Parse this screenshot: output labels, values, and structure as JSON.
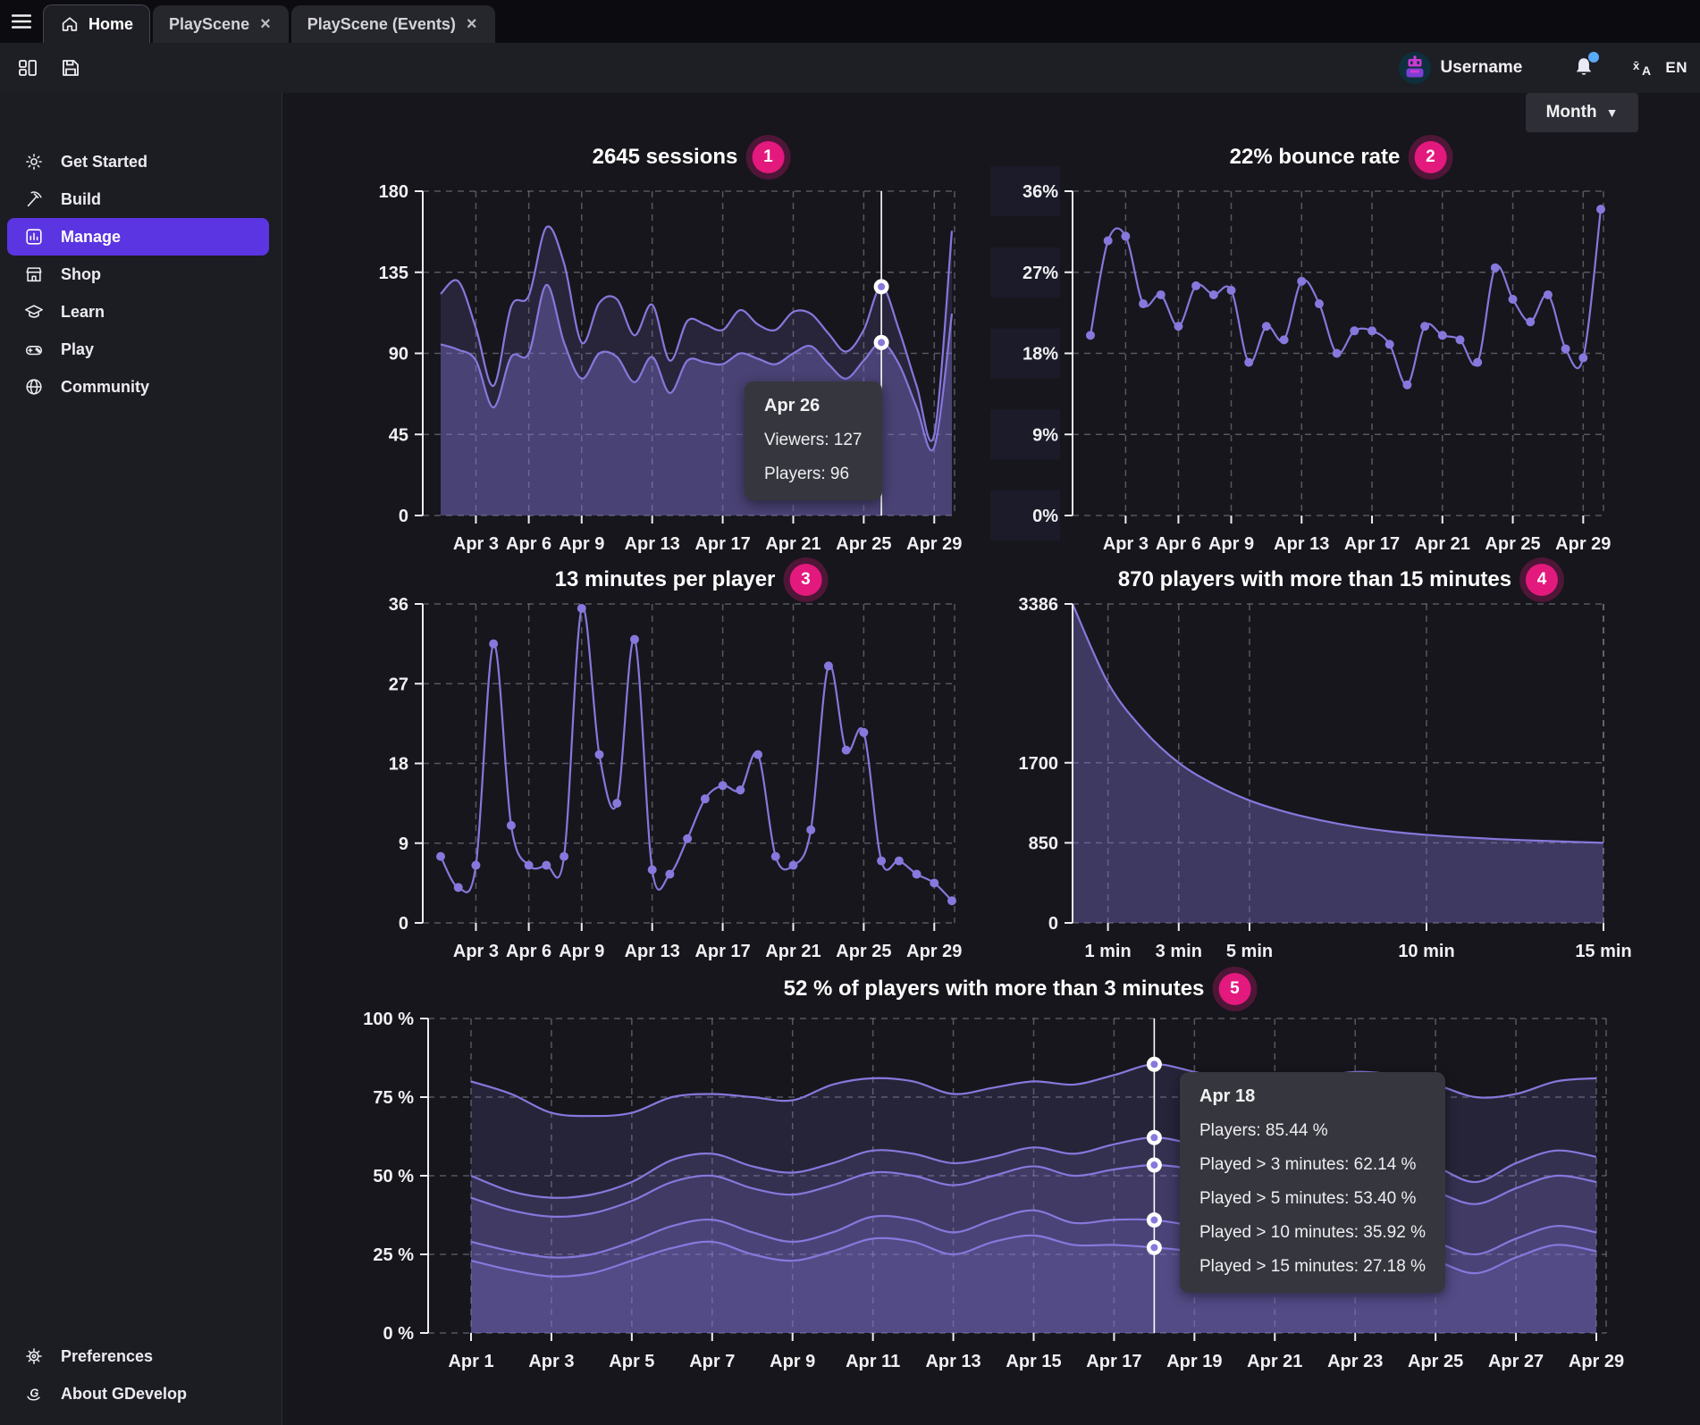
{
  "window": {
    "tabs": [
      {
        "label": "Home",
        "active": true
      },
      {
        "label": "PlayScene",
        "closable": true
      },
      {
        "label": "PlayScene (Events)",
        "closable": true
      }
    ]
  },
  "account": {
    "username": "Username",
    "language": "EN"
  },
  "period_selector": {
    "label": "Month"
  },
  "sidebar": {
    "items": [
      {
        "label": "Get Started"
      },
      {
        "label": "Build"
      },
      {
        "label": "Manage",
        "active": true
      },
      {
        "label": "Shop"
      },
      {
        "label": "Learn"
      },
      {
        "label": "Play"
      },
      {
        "label": "Community"
      }
    ],
    "footer": [
      {
        "label": "Preferences"
      },
      {
        "label": "About GDevelop"
      }
    ]
  },
  "colors": {
    "accent": "#5b35e1",
    "chart_line": "#8678dc",
    "badge": "#e3197e",
    "grid": "#9898a3",
    "tooltip_bg": "#36363e",
    "notification_dot": "#58aaf6"
  },
  "chart_data": [
    {
      "id": "sessions",
      "type": "area",
      "title": "2645 sessions",
      "badge": "1",
      "grid": true,
      "ylim": [
        0,
        180
      ],
      "yticks": [
        {
          "v": 0,
          "label": "0"
        },
        {
          "v": 45,
          "label": "45"
        },
        {
          "v": 90,
          "label": "90"
        },
        {
          "v": 135,
          "label": "135"
        },
        {
          "v": 180,
          "label": "180"
        }
      ],
      "xticks": [
        {
          "i": 2,
          "label": "Apr 3"
        },
        {
          "i": 5,
          "label": "Apr 6"
        },
        {
          "i": 8,
          "label": "Apr 9"
        },
        {
          "i": 12,
          "label": "Apr 13"
        },
        {
          "i": 16,
          "label": "Apr 17"
        },
        {
          "i": 20,
          "label": "Apr 21"
        },
        {
          "i": 24,
          "label": "Apr 25"
        },
        {
          "i": 28,
          "label": "Apr 29"
        }
      ],
      "series": [
        {
          "name": "Viewers",
          "values": [
            123,
            130,
            104,
            72,
            116,
            122,
            160,
            140,
            96,
            118,
            120,
            100,
            117,
            86,
            108,
            106,
            103,
            114,
            106,
            103,
            113,
            112,
            101,
            91,
            103,
            127,
            103,
            72,
            45,
            158
          ]
        },
        {
          "name": "Players",
          "values": [
            95,
            92,
            86,
            60,
            88,
            90,
            128,
            96,
            76,
            90,
            88,
            74,
            88,
            68,
            86,
            85,
            84,
            90,
            87,
            84,
            90,
            94,
            84,
            76,
            86,
            96,
            84,
            60,
            38,
            112
          ]
        }
      ],
      "highlight": {
        "index": 25,
        "label": "Apr 26",
        "tooltip": {
          "title": "Apr 26",
          "lines": [
            "Viewers: 127",
            "Players: 96"
          ]
        }
      }
    },
    {
      "id": "bounce",
      "type": "line",
      "title": "22% bounce rate",
      "badge": "2",
      "grid": true,
      "dots": true,
      "ylabel_bg": true,
      "ylim": [
        0,
        36
      ],
      "yticks": [
        {
          "v": 0,
          "label": "0%"
        },
        {
          "v": 9,
          "label": "9%"
        },
        {
          "v": 18,
          "label": "18%"
        },
        {
          "v": 27,
          "label": "27%"
        },
        {
          "v": 36,
          "label": "36%"
        }
      ],
      "xticks": [
        {
          "i": 2,
          "label": "Apr 3"
        },
        {
          "i": 5,
          "label": "Apr 6"
        },
        {
          "i": 8,
          "label": "Apr 9"
        },
        {
          "i": 12,
          "label": "Apr 13"
        },
        {
          "i": 16,
          "label": "Apr 17"
        },
        {
          "i": 20,
          "label": "Apr 21"
        },
        {
          "i": 24,
          "label": "Apr 25"
        },
        {
          "i": 28,
          "label": "Apr 29"
        }
      ],
      "series": [
        {
          "name": "Bounce rate",
          "values": [
            20,
            30.5,
            31,
            23.5,
            24.5,
            21,
            25.5,
            24.5,
            25,
            17,
            21,
            19.5,
            26,
            23.5,
            18,
            20.5,
            20.5,
            19,
            14.5,
            21,
            20,
            19.5,
            17,
            27.5,
            24,
            21.5,
            24.5,
            18.5,
            17.5,
            34
          ]
        }
      ]
    },
    {
      "id": "minutes",
      "type": "line",
      "title": "13 minutes per player",
      "badge": "3",
      "grid": true,
      "dots": true,
      "ylim": [
        0,
        36
      ],
      "yticks": [
        {
          "v": 0,
          "label": "0"
        },
        {
          "v": 9,
          "label": "9"
        },
        {
          "v": 18,
          "label": "18"
        },
        {
          "v": 27,
          "label": "27"
        },
        {
          "v": 36,
          "label": "36"
        }
      ],
      "xticks": [
        {
          "i": 2,
          "label": "Apr 3"
        },
        {
          "i": 5,
          "label": "Apr 6"
        },
        {
          "i": 8,
          "label": "Apr 9"
        },
        {
          "i": 12,
          "label": "Apr 13"
        },
        {
          "i": 16,
          "label": "Apr 17"
        },
        {
          "i": 20,
          "label": "Apr 21"
        },
        {
          "i": 24,
          "label": "Apr 25"
        },
        {
          "i": 28,
          "label": "Apr 29"
        }
      ],
      "series": [
        {
          "name": "Minutes per player",
          "values": [
            7.5,
            4,
            6.5,
            31.5,
            11,
            6.5,
            6.5,
            7.5,
            35.5,
            19,
            13.5,
            32,
            6,
            5.5,
            9.5,
            14,
            15.5,
            15,
            19,
            7.5,
            6.5,
            10.5,
            29,
            19.5,
            21.5,
            7,
            7,
            5.5,
            4.5,
            2.5
          ]
        }
      ]
    },
    {
      "id": "retention",
      "type": "area",
      "title": "870 players with more than 15 minutes",
      "badge": "4",
      "grid": true,
      "xlim": [
        0,
        15
      ],
      "x": [
        0,
        1,
        2,
        3,
        4,
        5,
        6,
        7,
        8,
        9,
        10,
        11,
        12,
        13,
        14,
        15
      ],
      "ylim": [
        0,
        3386
      ],
      "yticks": [
        {
          "v": 0,
          "label": "0"
        },
        {
          "v": 850,
          "label": "850"
        },
        {
          "v": 1700,
          "label": "1700"
        },
        {
          "v": 3386,
          "label": "3386"
        }
      ],
      "xticks": [
        {
          "v": 1,
          "label": "1 min"
        },
        {
          "v": 3,
          "label": "3 min"
        },
        {
          "v": 5,
          "label": "5 min"
        },
        {
          "v": 10,
          "label": "10 min"
        },
        {
          "v": 15,
          "label": "15 min"
        }
      ],
      "series": [
        {
          "name": "Players",
          "values": [
            3386,
            2550,
            2050,
            1700,
            1470,
            1300,
            1180,
            1090,
            1020,
            970,
            935,
            910,
            890,
            875,
            862,
            850
          ]
        }
      ]
    },
    {
      "id": "engagement",
      "type": "area",
      "title": "52 % of players with more than 3 minutes",
      "badge": "5",
      "grid": true,
      "ylim": [
        0,
        100
      ],
      "yticks": [
        {
          "v": 0,
          "label": "0 %"
        },
        {
          "v": 25,
          "label": "25 %"
        },
        {
          "v": 50,
          "label": "50 %"
        },
        {
          "v": 75,
          "label": "75 %"
        },
        {
          "v": 100,
          "label": "100 %"
        }
      ],
      "xticks": [
        {
          "i": 0,
          "label": "Apr 1"
        },
        {
          "i": 2,
          "label": "Apr 3"
        },
        {
          "i": 4,
          "label": "Apr 5"
        },
        {
          "i": 6,
          "label": "Apr 7"
        },
        {
          "i": 8,
          "label": "Apr 9"
        },
        {
          "i": 10,
          "label": "Apr 11"
        },
        {
          "i": 12,
          "label": "Apr 13"
        },
        {
          "i": 14,
          "label": "Apr 15"
        },
        {
          "i": 16,
          "label": "Apr 17"
        },
        {
          "i": 18,
          "label": "Apr 19"
        },
        {
          "i": 20,
          "label": "Apr 21"
        },
        {
          "i": 22,
          "label": "Apr 23"
        },
        {
          "i": 24,
          "label": "Apr 25"
        },
        {
          "i": 26,
          "label": "Apr 27"
        },
        {
          "i": 28,
          "label": "Apr 29"
        }
      ],
      "series": [
        {
          "name": "Players",
          "values": [
            80,
            76,
            70,
            69,
            70,
            75,
            76,
            75,
            74,
            79,
            81,
            80,
            76,
            78,
            80,
            79,
            82,
            85.44,
            83,
            80,
            78,
            81,
            83,
            82,
            79,
            75,
            76,
            80,
            81
          ]
        },
        {
          "name": "Played > 3 minutes",
          "values": [
            50,
            45,
            43,
            44,
            48,
            55,
            57,
            53,
            51,
            54,
            58,
            57,
            54,
            56,
            59,
            57,
            60,
            62.14,
            60,
            57,
            54,
            56,
            59,
            58,
            53,
            48,
            54,
            58,
            56
          ]
        },
        {
          "name": "Played > 5 minutes",
          "values": [
            43,
            39,
            37,
            38,
            42,
            48,
            50,
            46,
            44,
            47,
            51,
            50,
            47,
            50,
            53,
            50,
            52,
            53.4,
            52,
            49,
            46,
            48,
            51,
            50,
            45,
            41,
            46,
            50,
            48
          ]
        },
        {
          "name": "Played > 10 minutes",
          "values": [
            29,
            26,
            24,
            25,
            29,
            34,
            36,
            32,
            29,
            32,
            37,
            36,
            32,
            36,
            39,
            35,
            36,
            35.92,
            34,
            32,
            28,
            32,
            35,
            34,
            29,
            25,
            30,
            34,
            32
          ]
        },
        {
          "name": "Played > 15 minutes",
          "values": [
            23,
            20,
            18,
            19,
            23,
            27,
            29,
            25,
            23,
            26,
            30,
            29,
            25,
            29,
            31,
            28,
            28,
            27.18,
            26,
            25,
            22,
            26,
            29,
            27,
            23,
            19,
            24,
            28,
            26
          ]
        }
      ],
      "highlight": {
        "index": 17,
        "label": "Apr 18",
        "tooltip": {
          "title": "Apr 18",
          "lines": [
            "Players: 85.44 %",
            "Played > 3 minutes: 62.14 %",
            "Played > 5 minutes: 53.40 %",
            "Played > 10 minutes: 35.92 %",
            "Played > 15 minutes: 27.18 %"
          ]
        }
      }
    }
  ]
}
